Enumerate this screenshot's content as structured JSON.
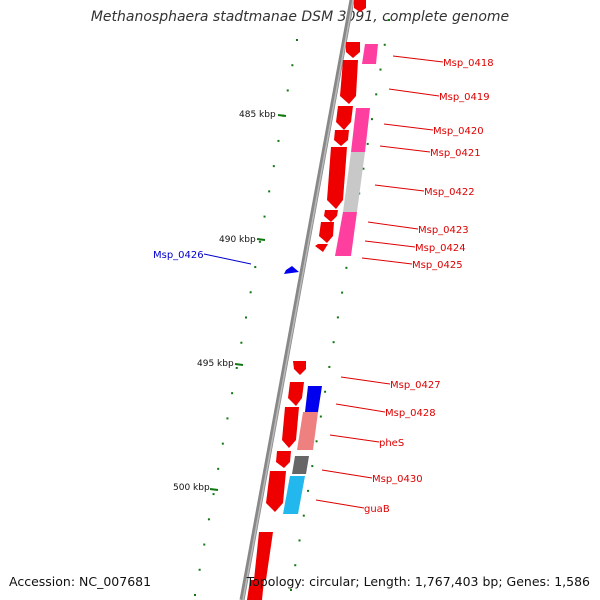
{
  "title": "Methanosphaera stadtmanae DSM 3091, complete genome",
  "accession_label": "Accession: NC_007681",
  "topology_label": "Topology: circular; Length: 1,767,403 bp; Genes: 1,586",
  "kbp_labels": [
    "485 kbp",
    "490 kbp",
    "495 kbp",
    "500 kbp"
  ],
  "gene_labels": [
    {
      "text": "Msp_0418",
      "color": "#dd0000"
    },
    {
      "text": "Msp_0419",
      "color": "#dd0000"
    },
    {
      "text": "Msp_0420",
      "color": "#dd0000"
    },
    {
      "text": "Msp_0421",
      "color": "#dd0000"
    },
    {
      "text": "Msp_0422",
      "color": "#dd0000"
    },
    {
      "text": "Msp_0423",
      "color": "#dd0000"
    },
    {
      "text": "Msp_0424",
      "color": "#dd0000"
    },
    {
      "text": "Msp_0425",
      "color": "#dd0000"
    },
    {
      "text": "Msp_0426",
      "color": "#0000cc"
    },
    {
      "text": "Msp_0427",
      "color": "#dd0000"
    },
    {
      "text": "Msp_0428",
      "color": "#dd0000"
    },
    {
      "text": "pheS",
      "color": "#dd0000"
    },
    {
      "text": "Msp_0430",
      "color": "#dd0000"
    },
    {
      "text": "guaB",
      "color": "#dd0000"
    }
  ],
  "colors": {
    "cds": "#ee0000",
    "backbone": "#888888",
    "tick": "#117711",
    "pink": "#ff3fa0",
    "gray": "#c8c8c8",
    "blue": "#0000ee",
    "salmon": "#ee8080",
    "dark_gray": "#666666",
    "cyan": "#22b8ee"
  }
}
